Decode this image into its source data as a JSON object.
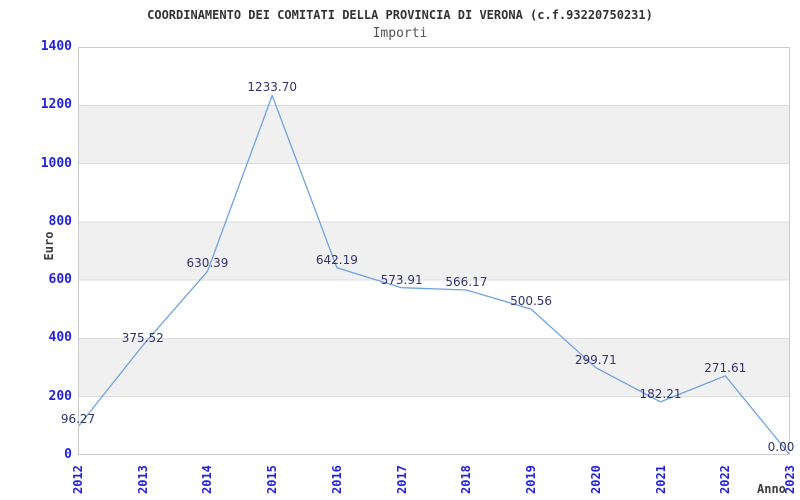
{
  "chart_data": {
    "type": "line",
    "title": "COORDINAMENTO DEI COMITATI DELLA PROVINCIA DI VERONA (c.f.93220750231)",
    "subtitle": "Importi",
    "xlabel": "Anno",
    "ylabel": "Euro",
    "categories": [
      "2012",
      "2013",
      "2014",
      "2015",
      "2016",
      "2017",
      "2018",
      "2019",
      "2020",
      "2021",
      "2022",
      "2023"
    ],
    "values": [
      96.27,
      375.52,
      630.39,
      1233.7,
      642.19,
      573.91,
      566.17,
      500.56,
      299.71,
      182.21,
      271.61,
      0.0
    ],
    "point_labels": [
      "96.27",
      "375.52",
      "630.39",
      "1233.70",
      "642.19",
      "573.91",
      "566.17",
      "500.56",
      "299.71",
      "182.21",
      "271.61",
      "0.00"
    ],
    "ylim": [
      0,
      1400
    ],
    "ytick_step": 200,
    "yticks": [
      "0",
      "200",
      "400",
      "600",
      "800",
      "1000",
      "1200",
      "1400"
    ],
    "grid": true,
    "band_fill": "alternate-horizontal",
    "legend": "none",
    "colors": {
      "line": "#6fa3e3",
      "tick_label": "#2222dd",
      "point_label": "#333370",
      "band": "#f0f0f0",
      "grid": "#dcdcdc",
      "border": "#cbcbcb",
      "title": "#333333",
      "subtitle": "#555555",
      "axis_title": "#3d3d3d",
      "background": "#ffffff"
    }
  }
}
